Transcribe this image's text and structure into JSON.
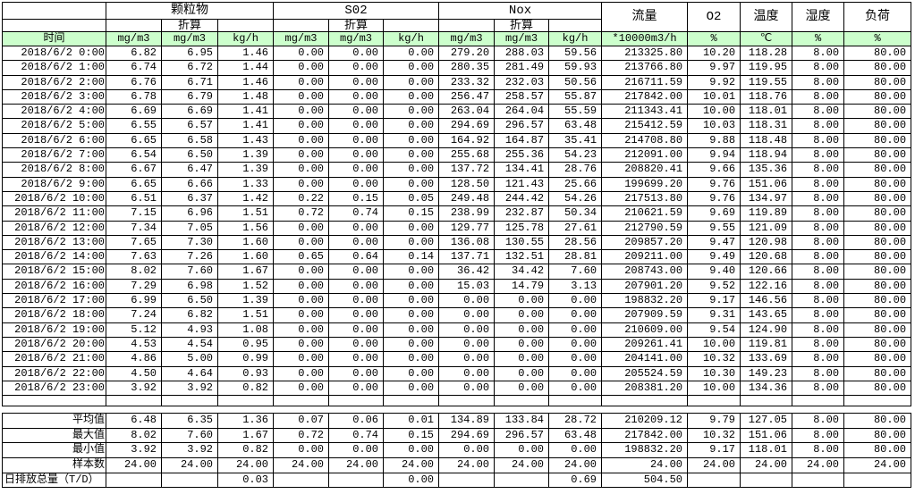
{
  "colors": {
    "header_green": "#ccffcc",
    "border": "#000000",
    "background": "#ffffff"
  },
  "table": {
    "header": {
      "time_label": "时间",
      "groups": [
        {
          "label": "颗粒物",
          "sub": "折算",
          "units": [
            "mg/m3",
            "mg/m3",
            "kg/h"
          ]
        },
        {
          "label": "S02",
          "sub": "折算",
          "units": [
            "mg/m3",
            "mg/m3",
            "kg/h"
          ]
        },
        {
          "label": "Nox",
          "sub": "折算",
          "units": [
            "mg/m3",
            "mg/m3",
            "kg/h"
          ]
        },
        {
          "label": "流量",
          "unit": "*10000m3/h"
        },
        {
          "label": "O2",
          "unit": "%"
        },
        {
          "label": "温度",
          "unit": "℃"
        },
        {
          "label": "湿度",
          "unit": "%"
        },
        {
          "label": "负荷",
          "unit": "%"
        }
      ]
    },
    "rows": [
      {
        "time": "2018/6/2 0:00",
        "values": [
          "6.82",
          "6.95",
          "1.46",
          "0.00",
          "0.00",
          "0.00",
          "279.20",
          "288.03",
          "59.56",
          "213325.80",
          "10.20",
          "118.28",
          "8.00",
          "80.00"
        ]
      },
      {
        "time": "2018/6/2 1:00",
        "values": [
          "6.74",
          "6.72",
          "1.44",
          "0.00",
          "0.00",
          "0.00",
          "280.35",
          "281.49",
          "59.93",
          "213766.80",
          "9.97",
          "119.95",
          "8.00",
          "80.00"
        ]
      },
      {
        "time": "2018/6/2 2:00",
        "values": [
          "6.76",
          "6.71",
          "1.46",
          "0.00",
          "0.00",
          "0.00",
          "233.32",
          "232.03",
          "50.56",
          "216711.59",
          "9.92",
          "119.55",
          "8.00",
          "80.00"
        ]
      },
      {
        "time": "2018/6/2 3:00",
        "values": [
          "6.78",
          "6.79",
          "1.48",
          "0.00",
          "0.00",
          "0.00",
          "256.47",
          "258.57",
          "55.87",
          "217842.00",
          "10.01",
          "118.76",
          "8.00",
          "80.00"
        ]
      },
      {
        "time": "2018/6/2 4:00",
        "values": [
          "6.69",
          "6.69",
          "1.41",
          "0.00",
          "0.00",
          "0.00",
          "263.04",
          "264.04",
          "55.59",
          "211343.41",
          "10.00",
          "118.01",
          "8.00",
          "80.00"
        ]
      },
      {
        "time": "2018/6/2 5:00",
        "values": [
          "6.55",
          "6.57",
          "1.41",
          "0.00",
          "0.00",
          "0.00",
          "294.69",
          "296.57",
          "63.48",
          "215412.59",
          "10.03",
          "118.31",
          "8.00",
          "80.00"
        ]
      },
      {
        "time": "2018/6/2 6:00",
        "values": [
          "6.65",
          "6.58",
          "1.43",
          "0.00",
          "0.00",
          "0.00",
          "164.92",
          "164.87",
          "35.41",
          "214708.80",
          "9.88",
          "118.48",
          "8.00",
          "80.00"
        ]
      },
      {
        "time": "2018/6/2 7:00",
        "values": [
          "6.54",
          "6.50",
          "1.39",
          "0.00",
          "0.00",
          "0.00",
          "255.68",
          "255.36",
          "54.23",
          "212091.00",
          "9.94",
          "118.94",
          "8.00",
          "80.00"
        ]
      },
      {
        "time": "2018/6/2 8:00",
        "values": [
          "6.67",
          "6.47",
          "1.39",
          "0.00",
          "0.00",
          "0.00",
          "137.72",
          "134.41",
          "28.76",
          "208820.41",
          "9.66",
          "135.36",
          "8.00",
          "80.00"
        ]
      },
      {
        "time": "2018/6/2 9:00",
        "values": [
          "6.65",
          "6.66",
          "1.33",
          "0.00",
          "0.00",
          "0.00",
          "128.50",
          "121.43",
          "25.66",
          "199699.20",
          "9.76",
          "151.06",
          "8.00",
          "80.00"
        ]
      },
      {
        "time": "2018/6/2 10:00",
        "values": [
          "6.51",
          "6.37",
          "1.42",
          "0.22",
          "0.15",
          "0.05",
          "249.48",
          "244.42",
          "54.26",
          "217513.80",
          "9.76",
          "134.97",
          "8.00",
          "80.00"
        ]
      },
      {
        "time": "2018/6/2 11:00",
        "values": [
          "7.15",
          "6.96",
          "1.51",
          "0.72",
          "0.74",
          "0.15",
          "238.99",
          "232.87",
          "50.34",
          "210621.59",
          "9.69",
          "119.89",
          "8.00",
          "80.00"
        ]
      },
      {
        "time": "2018/6/2 12:00",
        "values": [
          "7.34",
          "7.05",
          "1.56",
          "0.00",
          "0.00",
          "0.00",
          "129.77",
          "125.78",
          "27.61",
          "212790.59",
          "9.55",
          "121.09",
          "8.00",
          "80.00"
        ]
      },
      {
        "time": "2018/6/2 13:00",
        "values": [
          "7.65",
          "7.30",
          "1.60",
          "0.00",
          "0.00",
          "0.00",
          "136.08",
          "130.55",
          "28.56",
          "209857.20",
          "9.47",
          "120.98",
          "8.00",
          "80.00"
        ]
      },
      {
        "time": "2018/6/2 14:00",
        "values": [
          "7.63",
          "7.26",
          "1.60",
          "0.65",
          "0.64",
          "0.14",
          "137.71",
          "132.51",
          "28.81",
          "209211.00",
          "9.49",
          "120.68",
          "8.00",
          "80.00"
        ]
      },
      {
        "time": "2018/6/2 15:00",
        "values": [
          "8.02",
          "7.60",
          "1.67",
          "0.00",
          "0.00",
          "0.00",
          "36.42",
          "34.42",
          "7.60",
          "208743.00",
          "9.40",
          "120.66",
          "8.00",
          "80.00"
        ]
      },
      {
        "time": "2018/6/2 16:00",
        "values": [
          "7.29",
          "6.98",
          "1.52",
          "0.00",
          "0.00",
          "0.00",
          "15.03",
          "14.79",
          "3.13",
          "207901.20",
          "9.52",
          "122.16",
          "8.00",
          "80.00"
        ]
      },
      {
        "time": "2018/6/2 17:00",
        "values": [
          "6.99",
          "6.50",
          "1.39",
          "0.00",
          "0.00",
          "0.00",
          "0.00",
          "0.00",
          "0.00",
          "198832.20",
          "9.17",
          "146.56",
          "8.00",
          "80.00"
        ]
      },
      {
        "time": "2018/6/2 18:00",
        "values": [
          "7.24",
          "6.82",
          "1.51",
          "0.00",
          "0.00",
          "0.00",
          "0.00",
          "0.00",
          "0.00",
          "207909.59",
          "9.31",
          "143.65",
          "8.00",
          "80.00"
        ]
      },
      {
        "time": "2018/6/2 19:00",
        "values": [
          "5.12",
          "4.93",
          "1.08",
          "0.00",
          "0.00",
          "0.00",
          "0.00",
          "0.00",
          "0.00",
          "210609.00",
          "9.54",
          "124.90",
          "8.00",
          "80.00"
        ]
      },
      {
        "time": "2018/6/2 20:00",
        "values": [
          "4.53",
          "4.54",
          "0.95",
          "0.00",
          "0.00",
          "0.00",
          "0.00",
          "0.00",
          "0.00",
          "209261.41",
          "10.00",
          "119.81",
          "8.00",
          "80.00"
        ]
      },
      {
        "time": "2018/6/2 21:00",
        "values": [
          "4.86",
          "5.00",
          "0.99",
          "0.00",
          "0.00",
          "0.00",
          "0.00",
          "0.00",
          "0.00",
          "204141.00",
          "10.32",
          "133.69",
          "8.00",
          "80.00"
        ]
      },
      {
        "time": "2018/6/2 22:00",
        "values": [
          "4.50",
          "4.64",
          "0.93",
          "0.00",
          "0.00",
          "0.00",
          "0.00",
          "0.00",
          "0.00",
          "205524.59",
          "10.30",
          "149.23",
          "8.00",
          "80.00"
        ]
      },
      {
        "time": "2018/6/2 23:00",
        "values": [
          "3.92",
          "3.92",
          "0.82",
          "0.00",
          "0.00",
          "0.00",
          "0.00",
          "0.00",
          "0.00",
          "208381.20",
          "10.00",
          "134.36",
          "8.00",
          "80.00"
        ]
      }
    ],
    "summary": [
      {
        "label": "平均值",
        "values": [
          "6.48",
          "6.35",
          "1.36",
          "0.07",
          "0.06",
          "0.01",
          "134.89",
          "133.84",
          "28.72",
          "210209.12",
          "9.79",
          "127.05",
          "8.00",
          "80.00"
        ]
      },
      {
        "label": "最大值",
        "values": [
          "8.02",
          "7.60",
          "1.67",
          "0.72",
          "0.74",
          "0.15",
          "294.69",
          "296.57",
          "63.48",
          "217842.00",
          "10.32",
          "151.06",
          "8.00",
          "80.00"
        ]
      },
      {
        "label": "最小值",
        "values": [
          "3.92",
          "3.92",
          "0.82",
          "0.00",
          "0.00",
          "0.00",
          "0.00",
          "0.00",
          "0.00",
          "198832.20",
          "9.17",
          "118.01",
          "8.00",
          "80.00"
        ]
      },
      {
        "label": "样本数",
        "values": [
          "24.00",
          "24.00",
          "24.00",
          "24.00",
          "24.00",
          "24.00",
          "24.00",
          "24.00",
          "24.00",
          "24.00",
          "24.00",
          "24.00",
          "24.00",
          "24.00"
        ]
      },
      {
        "label": "日排放总量（T/D）",
        "values": [
          "",
          "",
          "0.03",
          "",
          "",
          "0.00",
          "",
          "",
          "0.69",
          "504.50",
          "",
          "",
          "",
          ""
        ]
      }
    ]
  }
}
